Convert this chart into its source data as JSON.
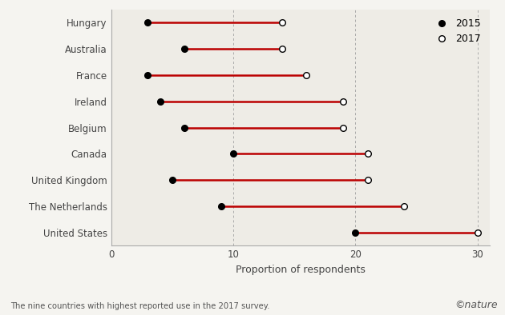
{
  "countries": [
    "Hungary",
    "Australia",
    "France",
    "Ireland",
    "Belgium",
    "Canada",
    "United Kingdom",
    "The Netherlands",
    "United States"
  ],
  "values_2015": [
    3.0,
    6.0,
    3.0,
    4.0,
    6.0,
    10.0,
    5.0,
    9.0,
    20.0
  ],
  "values_2017": [
    14.0,
    14.0,
    16.0,
    19.0,
    19.0,
    21.0,
    21.0,
    24.0,
    30.0
  ],
  "line_color": "#bb0000",
  "dot2015_color": "#000000",
  "dot2017_color": "#ffffff",
  "dot2017_edge": "#000000",
  "plot_bg_color": "#eeece6",
  "fig_bg_color": "#f5f4f0",
  "xlabel": "Proportion of respondents",
  "xlim": [
    0,
    31
  ],
  "xticks": [
    0,
    10,
    20,
    30
  ],
  "vlines": [
    10,
    20,
    30
  ],
  "caption": "The nine countries with highest reported use in the 2017 survey.",
  "nature_text": "©nature",
  "legend_2015": "2015",
  "legend_2017": "2017",
  "dot_size": 5.5,
  "line_width": 1.8
}
